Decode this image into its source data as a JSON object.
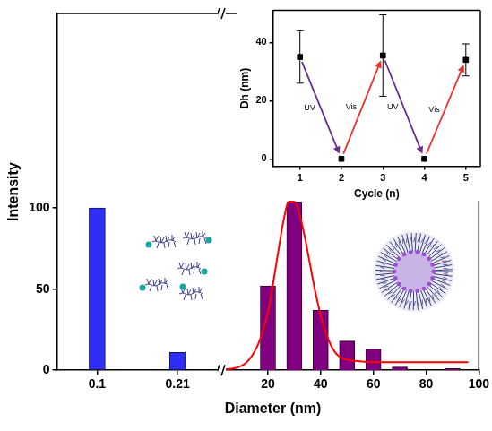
{
  "chart_data": [
    {
      "type": "bar",
      "y_label": "Intensity",
      "categories": [
        "0.1",
        "0.21"
      ],
      "values": [
        100,
        11
      ],
      "color": "#2e2ef5",
      "ylim": [
        0,
        220
      ],
      "yticks": [
        0,
        50,
        100
      ],
      "grid": false
    },
    {
      "type": "bar",
      "x_label": "Diameter (nm)",
      "xlim": [
        3,
        100
      ],
      "xticks": [
        20,
        40,
        60,
        80,
        100
      ],
      "ylim": [
        0,
        220
      ],
      "tick_labels": "x",
      "grid": false,
      "series": [
        {
          "type": "bar",
          "color": "#800080",
          "x": [
            20,
            30,
            40,
            50,
            60,
            70,
            90
          ],
          "values": [
            52,
            104,
            37,
            18,
            13,
            2,
            1
          ]
        },
        {
          "type": "line",
          "color": "#ff0000",
          "marker": "none",
          "x": [
            4,
            8,
            12,
            16,
            18,
            20,
            22,
            24,
            26,
            28,
            30,
            32,
            34,
            36,
            38,
            40,
            42,
            44,
            46,
            48,
            50,
            55,
            60,
            70,
            80,
            90,
            96
          ],
          "values": [
            0.5,
            1.5,
            5,
            15,
            24,
            36,
            54,
            74,
            93,
            104,
            104,
            96,
            82,
            65,
            48,
            34,
            23,
            15,
            10,
            7.5,
            6.5,
            5.5,
            5,
            5,
            5,
            5,
            5
          ]
        }
      ]
    },
    {
      "type": "scatter",
      "x_label": "Cycle (n)",
      "y_label": "Dh (nm)",
      "x": [
        1,
        2,
        3,
        4,
        5
      ],
      "values": [
        35,
        0,
        35.5,
        0,
        34
      ],
      "errors": [
        9,
        0,
        14,
        0,
        5.5
      ],
      "xlim": [
        0.35,
        5.35
      ],
      "xticks": [
        1,
        2,
        3,
        4,
        5
      ],
      "ylim": [
        -2.5,
        51
      ],
      "yticks": [
        0,
        20,
        40
      ],
      "marker": "square",
      "color": "#000000",
      "grid": false,
      "annotations": [
        {
          "text": "UV",
          "color": "#6b2d8f"
        },
        {
          "text": "Vis",
          "color": "#f03030"
        },
        {
          "text": "UV",
          "color": "#6b2d8f"
        },
        {
          "text": "Vis",
          "color": "#f03030"
        }
      ]
    }
  ]
}
